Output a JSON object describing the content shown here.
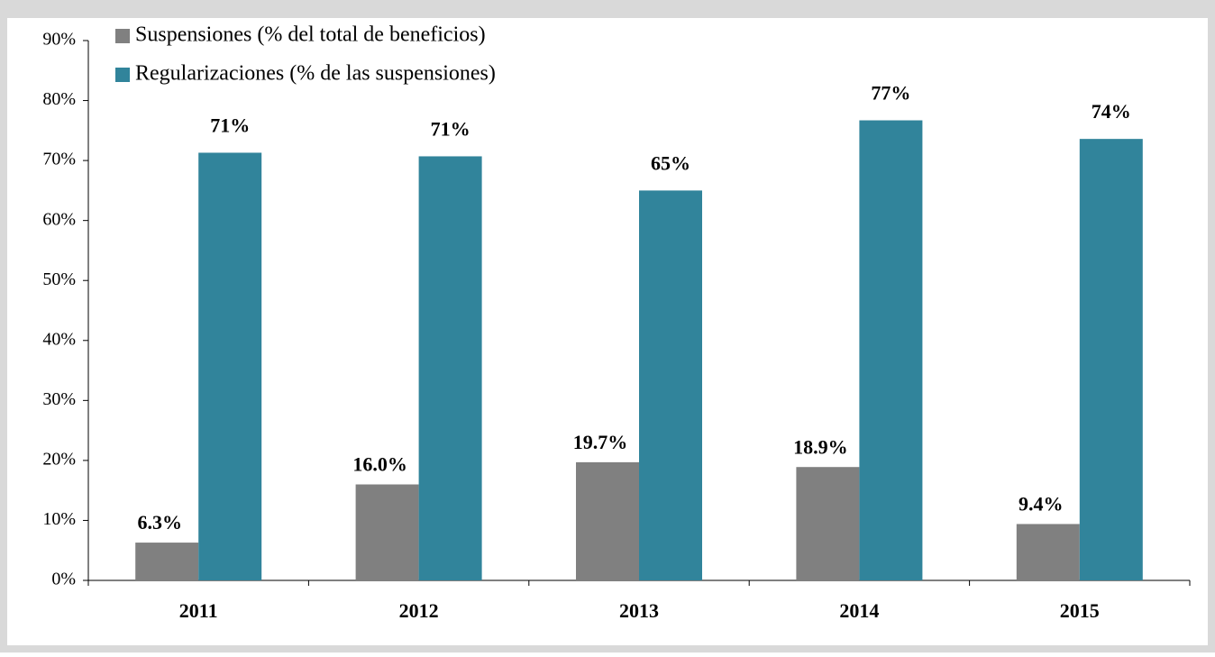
{
  "chart_data": {
    "type": "bar",
    "categories": [
      "2011",
      "2012",
      "2013",
      "2014",
      "2015"
    ],
    "series": [
      {
        "name": "Suspensiones (% del total de beneficios)",
        "color": "#808080",
        "values": [
          6.3,
          16.0,
          19.7,
          18.9,
          9.4
        ],
        "value_labels": [
          "6.3%",
          "16.0%",
          "19.7%",
          "18.9%",
          "9.4%"
        ]
      },
      {
        "name": "Regularizaciones (% de las suspensiones)",
        "color": "#31849b",
        "values": [
          71.3,
          70.7,
          65.0,
          76.7,
          73.6
        ],
        "value_labels": [
          "71%",
          "71%",
          "65%",
          "77%",
          "74%"
        ]
      }
    ],
    "ylim": [
      0,
      90
    ],
    "yticks": [
      {
        "value": 0,
        "label": "0%"
      },
      {
        "value": 10,
        "label": "10%"
      },
      {
        "value": 20,
        "label": "20%"
      },
      {
        "value": 30,
        "label": "30%"
      },
      {
        "value": 40,
        "label": "40%"
      },
      {
        "value": 50,
        "label": "50%"
      },
      {
        "value": 60,
        "label": "60%"
      },
      {
        "value": 70,
        "label": "70%"
      },
      {
        "value": 80,
        "label": "80%"
      },
      {
        "value": 90,
        "label": "90%"
      }
    ],
    "grid": false,
    "legend": "top-left"
  }
}
